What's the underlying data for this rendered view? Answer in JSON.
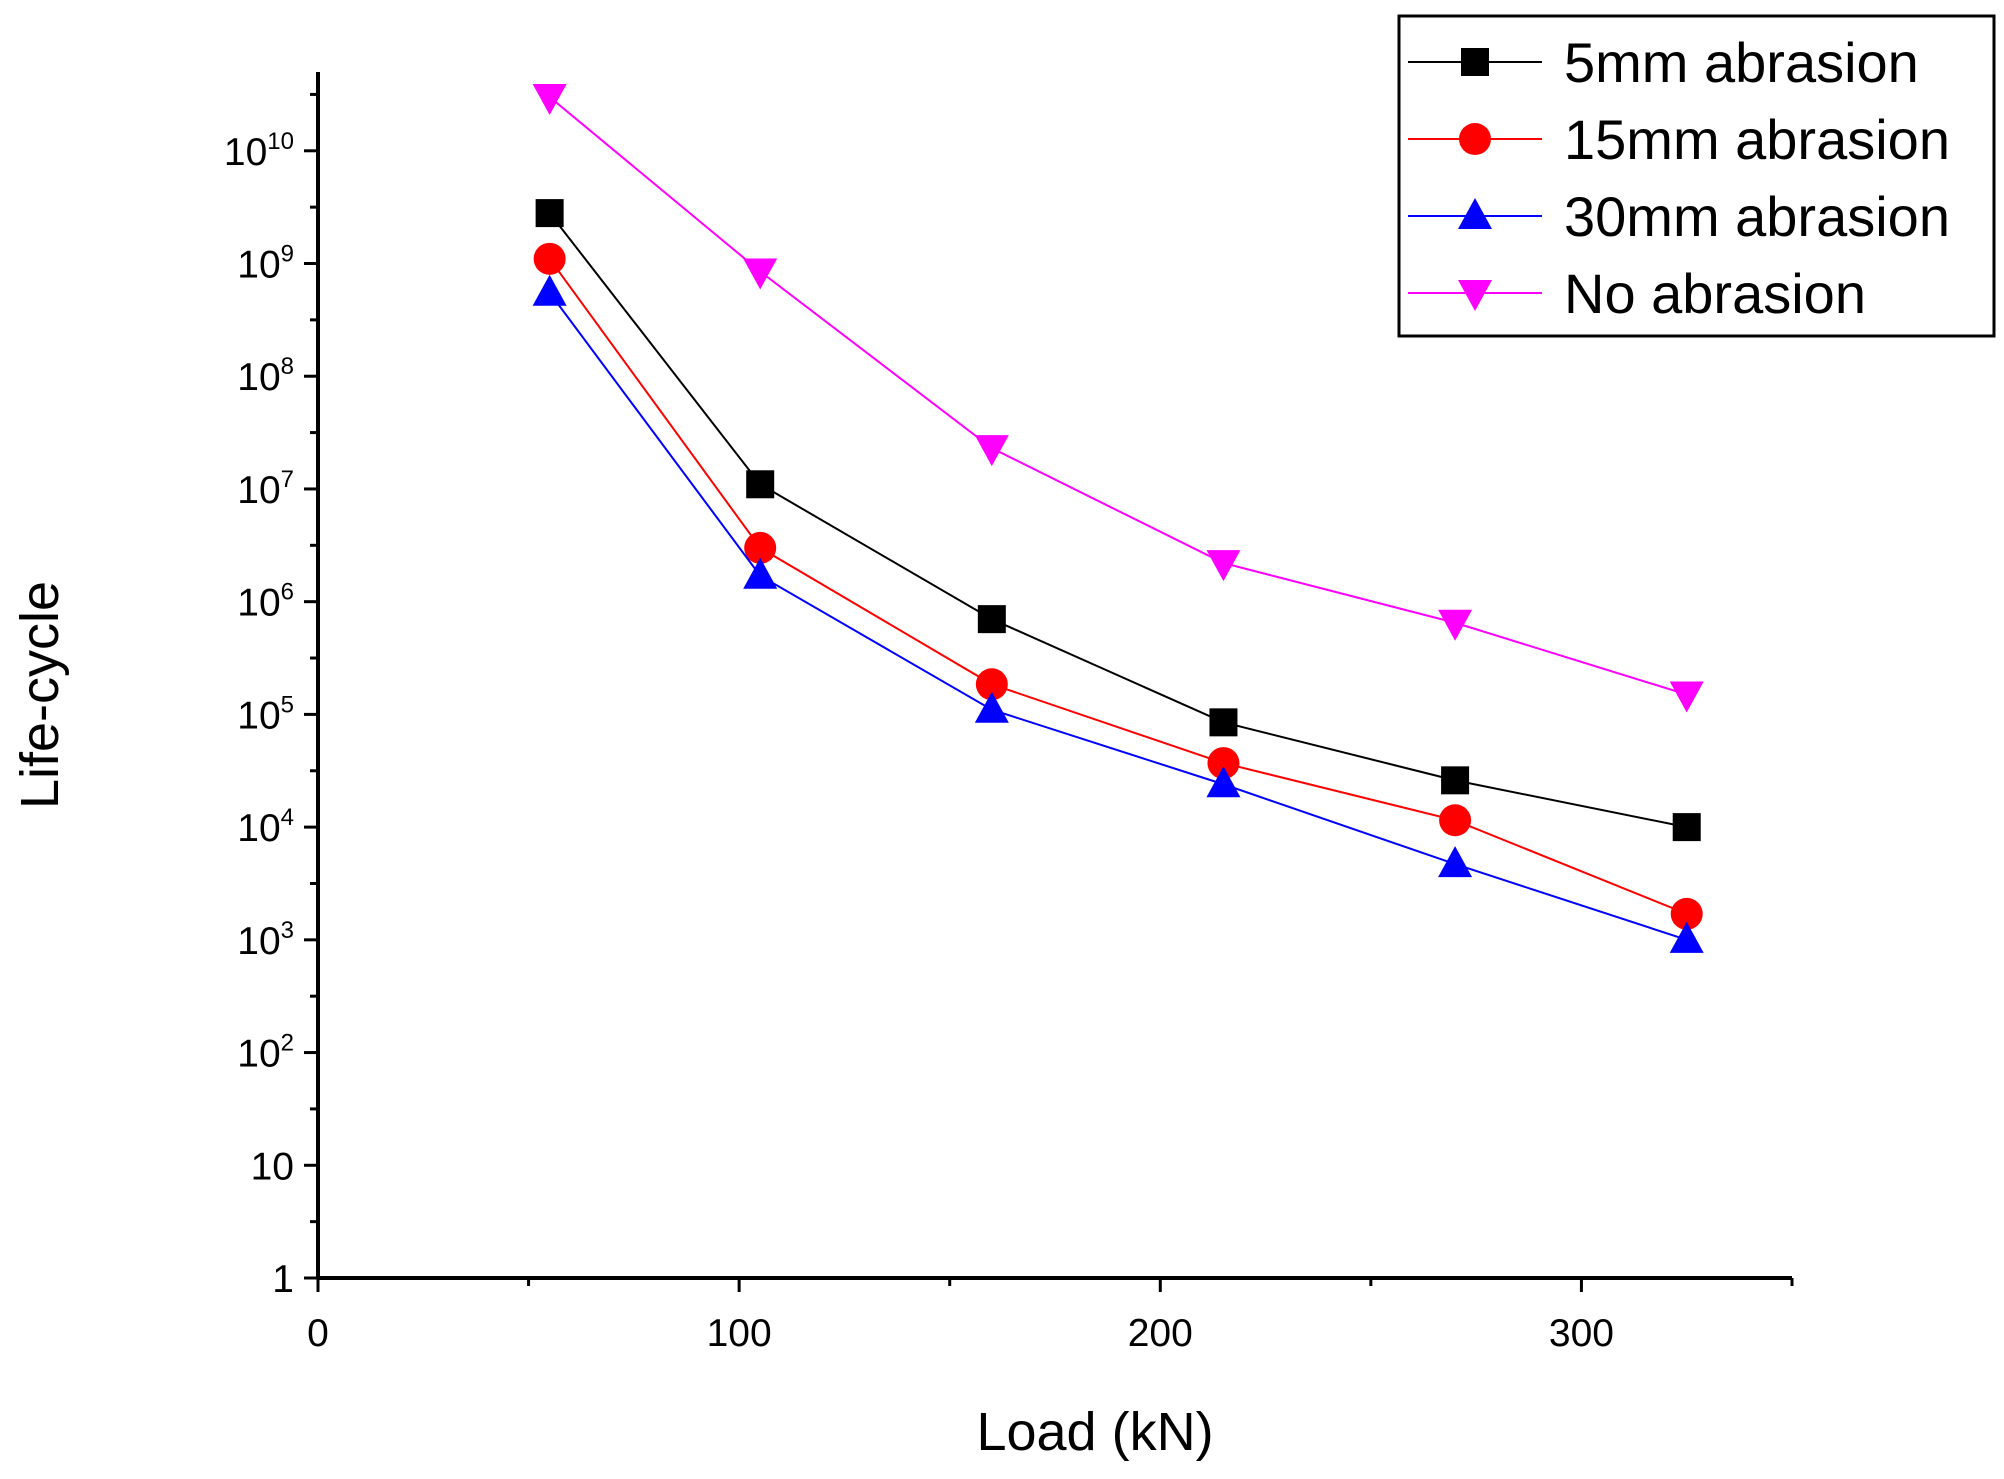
{
  "chart_data": {
    "type": "line",
    "title": "",
    "xlabel": "Load (kN)",
    "ylabel": "Life-cycle",
    "xlim": [
      0,
      350
    ],
    "ylim": [
      1,
      50000000000
    ],
    "yscale": "log",
    "grid": false,
    "legend_position": "top-right",
    "x_ticks": [
      {
        "value": 0,
        "label": "0"
      },
      {
        "value": 100,
        "label": "100"
      },
      {
        "value": 200,
        "label": "200"
      },
      {
        "value": 300,
        "label": "300"
      }
    ],
    "x_minor_ticks": [
      50,
      150,
      250,
      350
    ],
    "y_ticks": [
      {
        "value": 1,
        "base": "1",
        "exp": ""
      },
      {
        "value": 10,
        "base": "10",
        "exp": ""
      },
      {
        "value": 100,
        "base": "10",
        "exp": "2"
      },
      {
        "value": 1000,
        "base": "10",
        "exp": "3"
      },
      {
        "value": 10000,
        "base": "10",
        "exp": "4"
      },
      {
        "value": 100000,
        "base": "10",
        "exp": "5"
      },
      {
        "value": 1000000,
        "base": "10",
        "exp": "6"
      },
      {
        "value": 10000000,
        "base": "10",
        "exp": "7"
      },
      {
        "value": 100000000,
        "base": "10",
        "exp": "8"
      },
      {
        "value": 1000000000,
        "base": "10",
        "exp": "9"
      },
      {
        "value": 10000000000,
        "base": "10",
        "exp": "10"
      }
    ],
    "series": [
      {
        "name": "5mm abrasion",
        "color": "#000000",
        "marker": "square",
        "points": [
          [
            55,
            2800000000
          ],
          [
            105,
            11000000
          ],
          [
            160,
            700000
          ],
          [
            215,
            85000
          ],
          [
            270,
            26000
          ],
          [
            325,
            10000
          ]
        ]
      },
      {
        "name": "15mm abrasion",
        "color": "#ff0000",
        "marker": "circle",
        "points": [
          [
            55,
            1100000000
          ],
          [
            105,
            3000000
          ],
          [
            160,
            185000
          ],
          [
            215,
            37000
          ],
          [
            270,
            11500
          ],
          [
            325,
            1700
          ]
        ]
      },
      {
        "name": "30mm abrasion",
        "color": "#0000ff",
        "marker": "triangle-up",
        "points": [
          [
            55,
            550000000
          ],
          [
            105,
            1700000
          ],
          [
            160,
            110000
          ],
          [
            215,
            24000
          ],
          [
            270,
            4700
          ],
          [
            325,
            1000
          ]
        ]
      },
      {
        "name": "No abrasion",
        "color": "#ff00ff",
        "marker": "triangle-down",
        "points": [
          [
            55,
            30000000000
          ],
          [
            105,
            850000000
          ],
          [
            160,
            23000000
          ],
          [
            215,
            2200000
          ],
          [
            270,
            650000
          ],
          [
            325,
            150000
          ]
        ]
      }
    ]
  }
}
